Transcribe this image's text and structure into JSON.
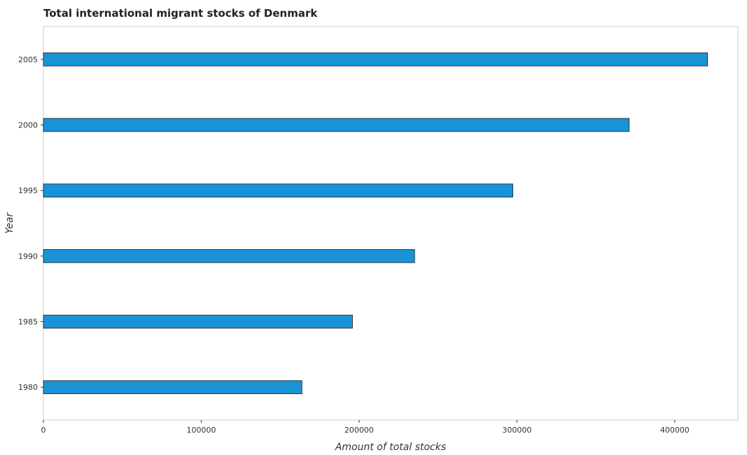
{
  "chart_data": {
    "type": "bar",
    "orientation": "horizontal",
    "title": "Total international migrant stocks of Denmark",
    "xlabel": "Amount of total stocks",
    "ylabel": "Year",
    "categories": [
      "1980",
      "1985",
      "1990",
      "1995",
      "2000",
      "2005"
    ],
    "values": [
      163800,
      195800,
      235200,
      297400,
      371100,
      420800
    ],
    "xlim": [
      0,
      440000
    ],
    "xticks": [
      0,
      100000,
      200000,
      300000,
      400000
    ],
    "xtick_labels": [
      "0",
      "100000",
      "200000",
      "300000",
      "400000"
    ],
    "bar_color": "#1a93d6",
    "bar_edge_color": "#1a1a1a",
    "grid": false
  }
}
